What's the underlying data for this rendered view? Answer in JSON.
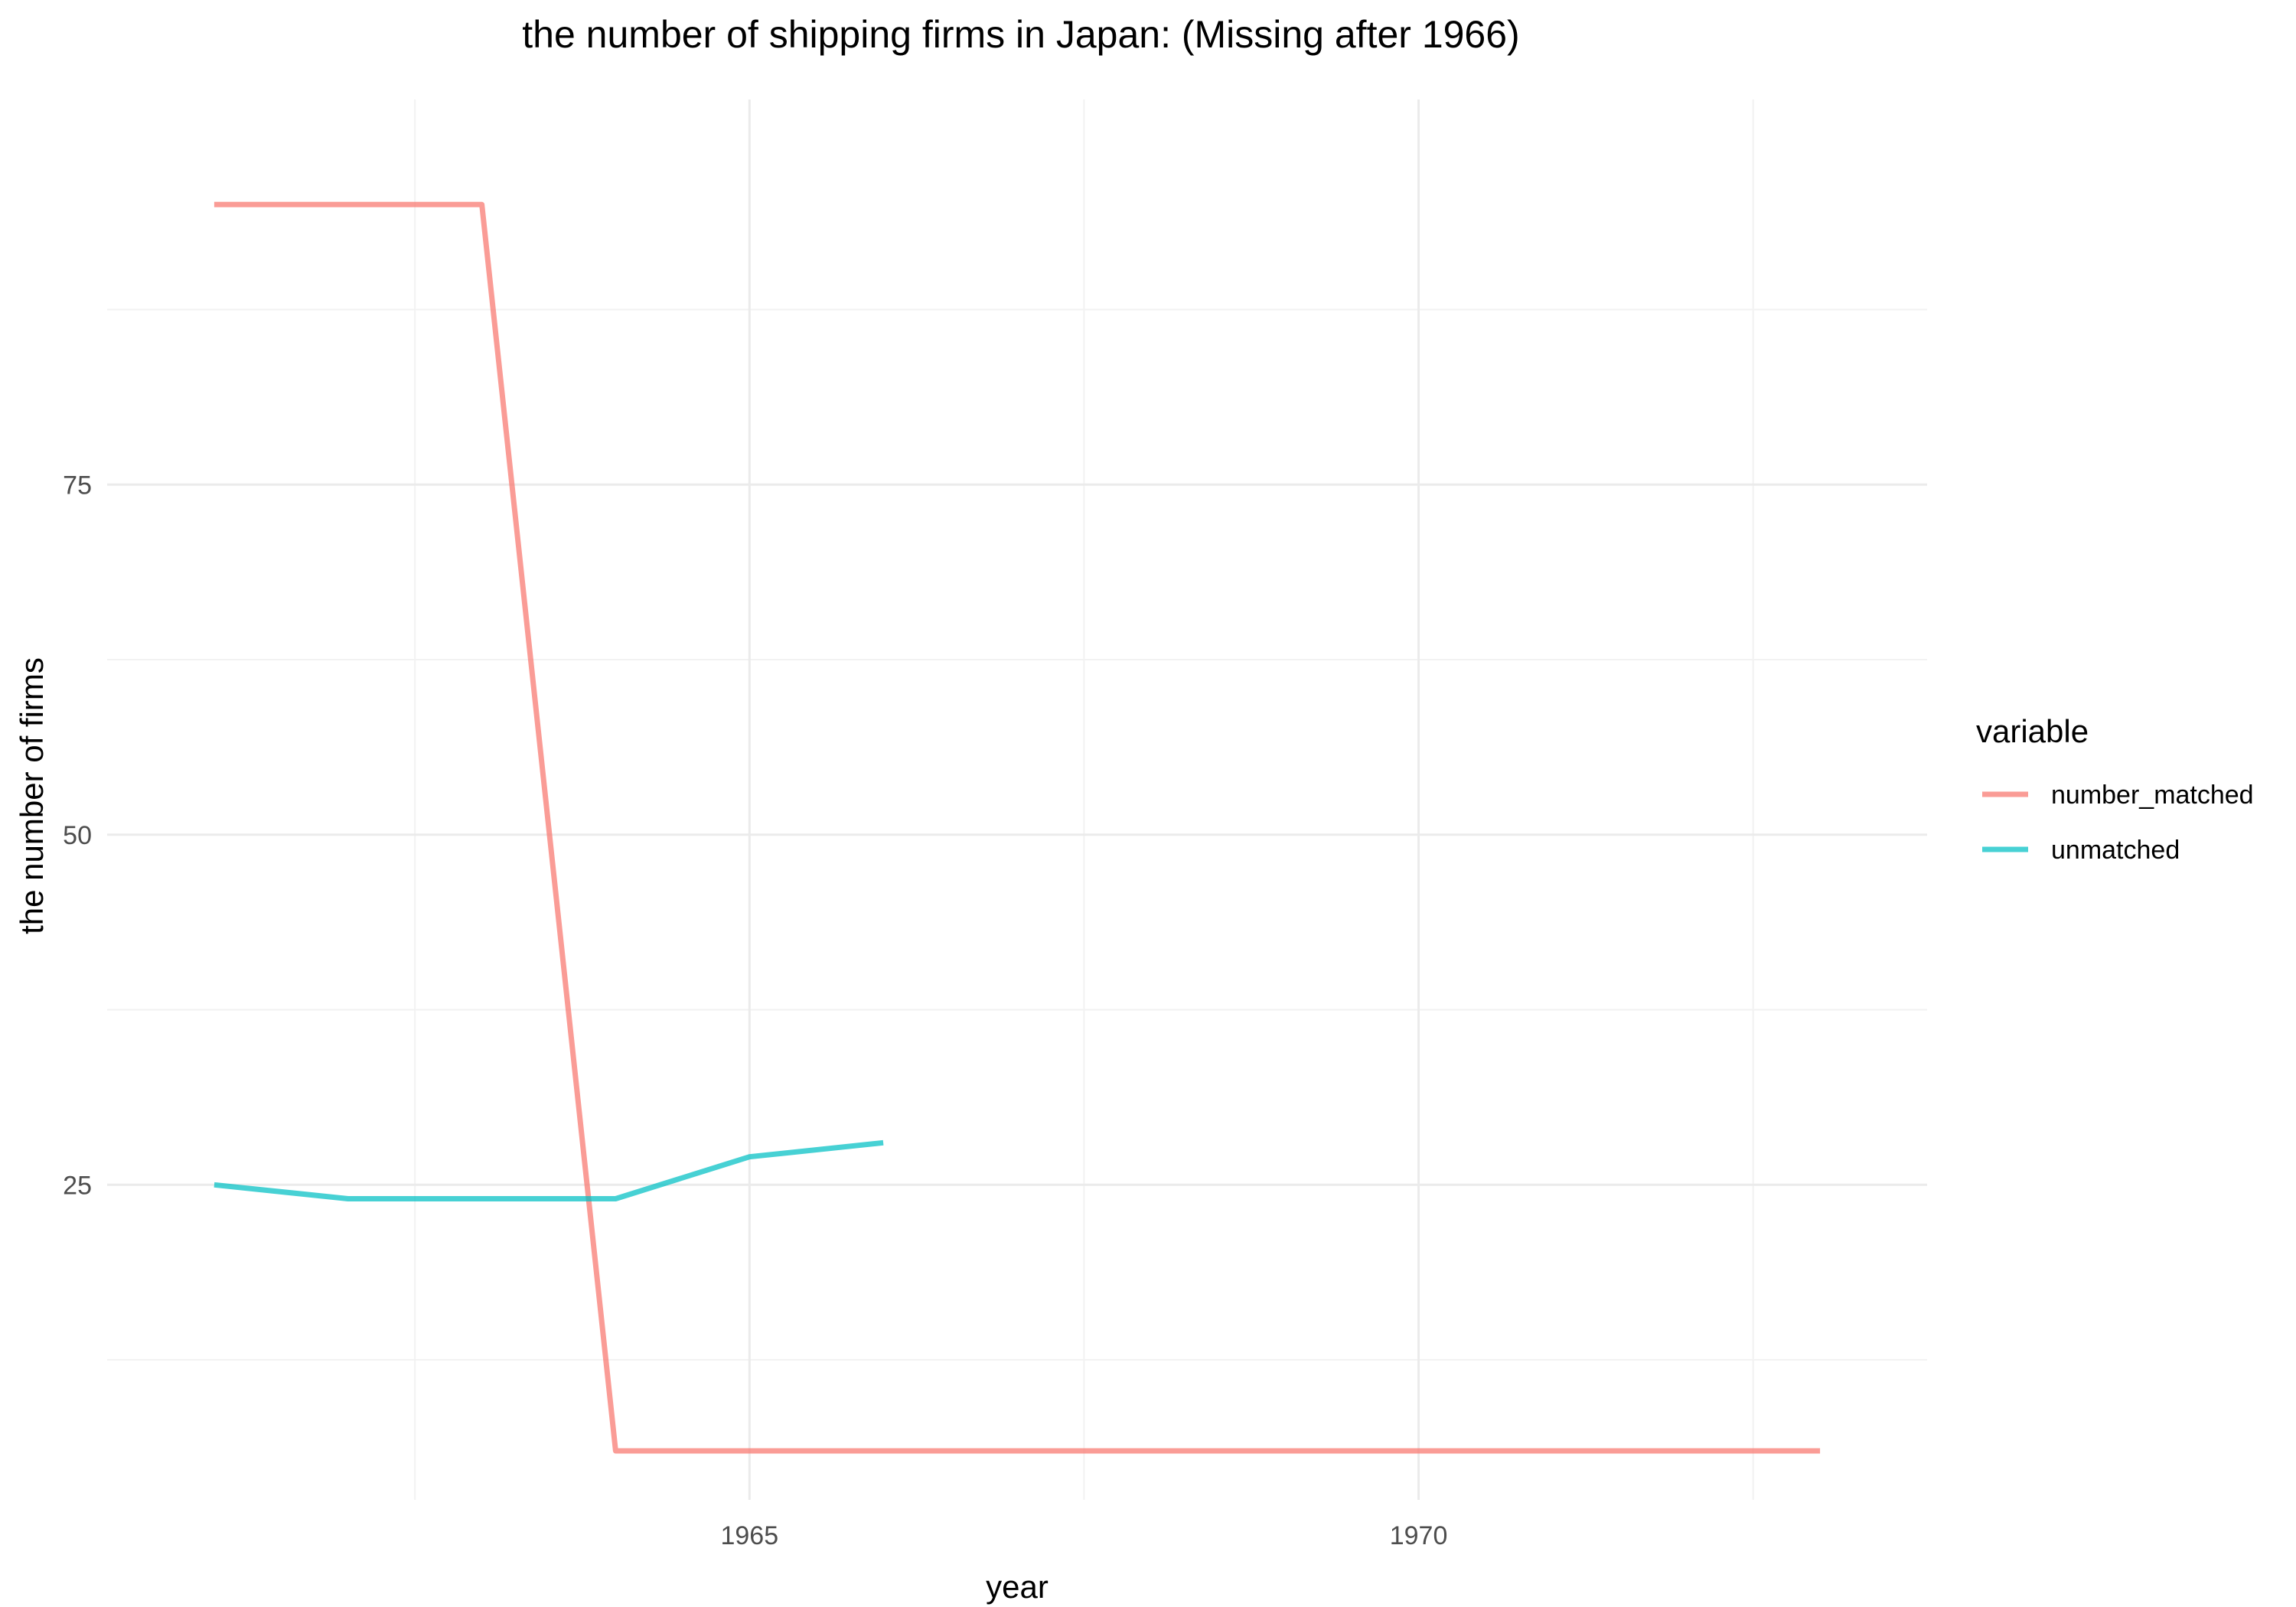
{
  "chart_data": {
    "type": "line",
    "title": "the number of shipping firms in Japan: (Missing after 1966)",
    "xlabel": "year",
    "ylabel": "the number of firms",
    "xlim": [
      1960.2,
      1973.8
    ],
    "ylim": [
      2.5,
      102.5
    ],
    "x_ticks": [
      1965,
      1970
    ],
    "x_minor_ticks": [
      1962.5,
      1967.5,
      1972.5
    ],
    "y_ticks": [
      25,
      50,
      75
    ],
    "y_minor_ticks": [
      12.5,
      37.5,
      62.5,
      87.5
    ],
    "grid": true,
    "legend": {
      "title": "variable",
      "position": "right"
    },
    "series": [
      {
        "name": "number_matched",
        "color": "#F8766D",
        "x": [
          1961,
          1962,
          1963,
          1964,
          1965,
          1966,
          1967,
          1968,
          1969,
          1970,
          1971,
          1972,
          1973
        ],
        "y": [
          95,
          95,
          95,
          6,
          6,
          6,
          6,
          6,
          6,
          6,
          6,
          6,
          6
        ]
      },
      {
        "name": "unmatched",
        "color": "#00BFC4",
        "x": [
          1961,
          1962,
          1963,
          1964,
          1965,
          1966
        ],
        "y": [
          25,
          24,
          24,
          24,
          27,
          28
        ]
      }
    ]
  }
}
